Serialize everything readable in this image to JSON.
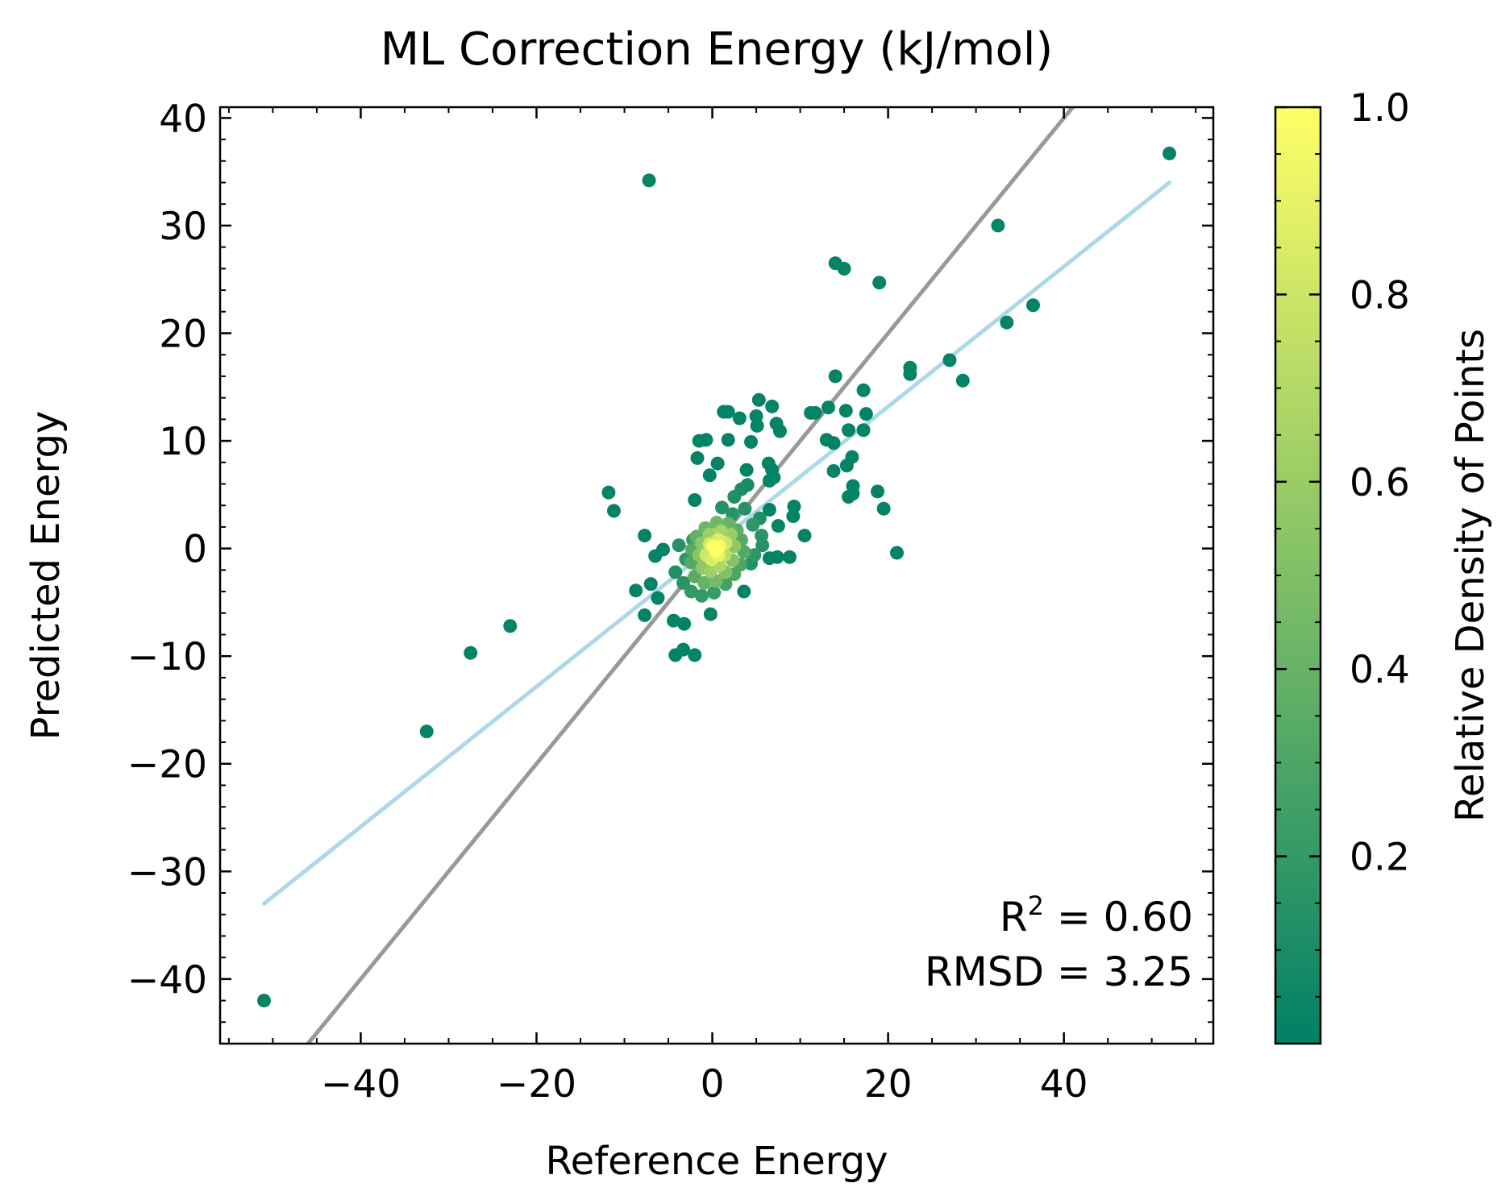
{
  "chart_data": {
    "type": "scatter",
    "title": "ML Correction Energy (kJ/mol)",
    "xlabel": "Reference Energy",
    "ylabel": "Predicted Energy",
    "xlim": [
      -56,
      57
    ],
    "ylim": [
      -46,
      41
    ],
    "xticks": [
      -40,
      -20,
      0,
      20,
      40
    ],
    "xtick_labels": [
      "−40",
      "−20",
      "0",
      "20",
      "40"
    ],
    "yticks": [
      -40,
      -30,
      -20,
      -10,
      0,
      10,
      20,
      30,
      40
    ],
    "ytick_labels": [
      "−40",
      "−30",
      "−20",
      "−10",
      "0",
      "10",
      "20",
      "30",
      "40"
    ],
    "grid": false,
    "stats": {
      "r2_label": "R",
      "r2_sup": "2",
      "r2_value": " = 0.60",
      "rmsd": "RMSD = 3.25"
    },
    "colorbar": {
      "label": "Relative Density of Points",
      "range": [
        0,
        1
      ],
      "ticks": [
        0.2,
        0.4,
        0.6,
        0.8,
        1.0
      ],
      "tick_labels": [
        "0.2",
        "0.4",
        "0.6",
        "0.8",
        "1.0"
      ],
      "colormap": "summer",
      "color_low": "#008066",
      "color_high": "#ffff66"
    },
    "identity_line": {
      "color": "#999999",
      "x": [
        -46,
        41
      ],
      "y": [
        -46,
        41
      ]
    },
    "fit_line": {
      "color": "#add8e6",
      "x": [
        -51,
        52
      ],
      "y": [
        -33,
        34
      ]
    },
    "points": [
      [
        -51,
        -42,
        0.02
      ],
      [
        52,
        36.7,
        0.02
      ],
      [
        -7.2,
        34.2,
        0.02
      ],
      [
        32.5,
        30,
        0.02
      ],
      [
        14,
        26.5,
        0.02
      ],
      [
        15,
        26,
        0.02
      ],
      [
        19,
        24.7,
        0.02
      ],
      [
        33.5,
        21,
        0.02
      ],
      [
        36.5,
        22.6,
        0.02
      ],
      [
        22.5,
        16.8,
        0.02
      ],
      [
        22.5,
        16.2,
        0.02
      ],
      [
        27,
        17.5,
        0.02
      ],
      [
        28.5,
        15.6,
        0.02
      ],
      [
        14,
        16,
        0.02
      ],
      [
        5.3,
        13.8,
        0.02
      ],
      [
        6.8,
        13.2,
        0.02
      ],
      [
        7.3,
        11.6,
        0.02
      ],
      [
        7.7,
        10.9,
        0.02
      ],
      [
        1.3,
        12.7,
        0.02
      ],
      [
        1.8,
        12.7,
        0.02
      ],
      [
        3.1,
        12.1,
        0.02
      ],
      [
        5,
        12.3,
        0.02
      ],
      [
        5.1,
        11.4,
        0.02
      ],
      [
        11.2,
        12.6,
        0.02
      ],
      [
        11.7,
        12.6,
        0.02
      ],
      [
        13.2,
        13.1,
        0.02
      ],
      [
        15.2,
        12.8,
        0.02
      ],
      [
        17.2,
        14.7,
        0.02
      ],
      [
        17.5,
        12.5,
        0.02
      ],
      [
        15.5,
        11,
        0.02
      ],
      [
        17.2,
        11,
        0.02
      ],
      [
        13,
        10.1,
        0.02
      ],
      [
        13.8,
        9.8,
        0.02
      ],
      [
        15.9,
        8.5,
        0.02
      ],
      [
        15.3,
        7.7,
        0.02
      ],
      [
        13.8,
        7.2,
        0.02
      ],
      [
        -1.5,
        10,
        0.02
      ],
      [
        -0.7,
        10.1,
        0.02
      ],
      [
        1.8,
        10.1,
        0.02
      ],
      [
        4.4,
        9.9,
        0.02
      ],
      [
        -1.7,
        8.4,
        0.02
      ],
      [
        0.6,
        7.9,
        0.02
      ],
      [
        -0.3,
        6.8,
        0.02
      ],
      [
        3.9,
        7.3,
        0.02
      ],
      [
        6.4,
        7.9,
        0.02
      ],
      [
        6.8,
        7.3,
        0.02
      ],
      [
        7,
        6.6,
        0.02
      ],
      [
        6.5,
        6.3,
        0.02
      ],
      [
        16,
        5.8,
        0.02
      ],
      [
        15.5,
        4.8,
        0.02
      ],
      [
        16,
        5.1,
        0.02
      ],
      [
        18.8,
        5.3,
        0.02
      ],
      [
        19.5,
        3.7,
        0.02
      ],
      [
        21,
        -0.4,
        0.02
      ],
      [
        -11.8,
        5.2,
        0.02
      ],
      [
        -11.2,
        3.5,
        0.02
      ],
      [
        -2,
        4.5,
        0.02
      ],
      [
        9.3,
        3.9,
        0.02
      ],
      [
        9.2,
        3,
        0.02
      ],
      [
        6.5,
        3.6,
        0.02
      ],
      [
        7.5,
        2.1,
        0.02
      ],
      [
        10.5,
        1.2,
        0.02
      ],
      [
        8.8,
        -0.8,
        0.02
      ],
      [
        7.4,
        -0.8,
        0.02
      ],
      [
        6.5,
        -0.9,
        0.02
      ],
      [
        -7.7,
        1.2,
        0.02
      ],
      [
        -5.6,
        -0.1,
        0.02
      ],
      [
        -6.5,
        -0.7,
        0.02
      ],
      [
        -8.7,
        -3.9,
        0.02
      ],
      [
        -7,
        -3.3,
        0.02
      ],
      [
        -6.2,
        -4.6,
        0.02
      ],
      [
        -7.7,
        -6.2,
        0.02
      ],
      [
        -4.4,
        -6.7,
        0.02
      ],
      [
        -3.2,
        -7,
        0.02
      ],
      [
        -4.2,
        -9.9,
        0.02
      ],
      [
        -3.3,
        -9.4,
        0.02
      ],
      [
        -2,
        -9.9,
        0.02
      ],
      [
        -0.2,
        -6.1,
        0.02
      ],
      [
        3.6,
        -4,
        0.02
      ],
      [
        -23,
        -7.2,
        0.02
      ],
      [
        -27.5,
        -9.7,
        0.02
      ],
      [
        -32.5,
        -17,
        0.02
      ],
      [
        4,
        5.9,
        0.08
      ],
      [
        3.3,
        5.5,
        0.1
      ],
      [
        2.5,
        4.8,
        0.12
      ],
      [
        3.7,
        3.7,
        0.14
      ],
      [
        2.3,
        3.2,
        0.16
      ],
      [
        1.1,
        3.8,
        0.14
      ],
      [
        5.4,
        2.8,
        0.12
      ],
      [
        4.6,
        2.2,
        0.18
      ],
      [
        5.6,
        1.2,
        0.16
      ],
      [
        5.7,
        0.3,
        0.14
      ],
      [
        4.8,
        -0.6,
        0.18
      ],
      [
        4.4,
        -1.4,
        0.14
      ],
      [
        -4.2,
        -2.2,
        0.12
      ],
      [
        -3,
        -1,
        0.18
      ],
      [
        -3.8,
        0.3,
        0.14
      ],
      [
        -2.2,
        0.8,
        0.2
      ],
      [
        -3.3,
        -3.2,
        0.16
      ],
      [
        -2.4,
        -4,
        0.2
      ],
      [
        -1.2,
        -4.4,
        0.2
      ],
      [
        0.2,
        -4.1,
        0.22
      ],
      [
        1.5,
        -3.3,
        0.26
      ],
      [
        2.5,
        -2.4,
        0.3
      ],
      [
        3.2,
        -1.5,
        0.3
      ],
      [
        3.6,
        -0.3,
        0.32
      ],
      [
        3.3,
        0.8,
        0.34
      ],
      [
        2.8,
        1.7,
        0.36
      ],
      [
        1.8,
        2.3,
        0.4
      ],
      [
        0.5,
        2.4,
        0.44
      ],
      [
        -0.8,
        1.9,
        0.42
      ],
      [
        -1.8,
        1.1,
        0.38
      ],
      [
        -2.3,
        -0.1,
        0.34
      ],
      [
        -2.4,
        -1.3,
        0.32
      ],
      [
        -2,
        -2.6,
        0.34
      ],
      [
        -0.9,
        -3.2,
        0.4
      ],
      [
        0.4,
        -3,
        0.46
      ],
      [
        1.5,
        -2.2,
        0.5
      ],
      [
        2.3,
        -1.1,
        0.52
      ],
      [
        2.5,
        0.2,
        0.56
      ],
      [
        2.1,
        1.3,
        0.6
      ],
      [
        1,
        1.6,
        0.66
      ],
      [
        -0.3,
        1.3,
        0.62
      ],
      [
        -1.2,
        0.5,
        0.56
      ],
      [
        -1.5,
        -0.6,
        0.54
      ],
      [
        -1.1,
        -1.8,
        0.56
      ],
      [
        -0.2,
        -2.1,
        0.62
      ],
      [
        0.8,
        -1.6,
        0.68
      ],
      [
        1.4,
        -0.6,
        0.74
      ],
      [
        1.5,
        0.5,
        0.8
      ],
      [
        0.7,
        0.8,
        0.86
      ],
      [
        -0.3,
        0.4,
        0.84
      ],
      [
        -0.7,
        -0.6,
        0.8
      ],
      [
        -0.1,
        -1,
        0.86
      ],
      [
        0.7,
        -0.6,
        0.92
      ],
      [
        0.8,
        0.2,
        0.96
      ],
      [
        0.1,
        0.2,
        1.0
      ],
      [
        0.4,
        -0.2,
        1.0
      ]
    ]
  }
}
